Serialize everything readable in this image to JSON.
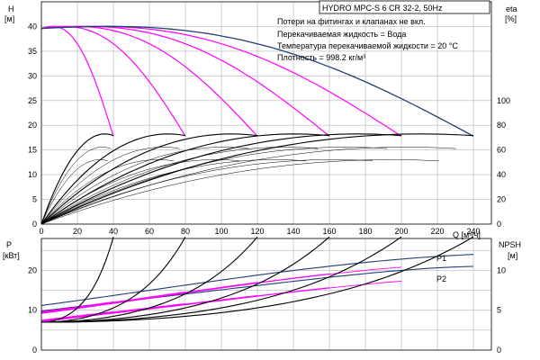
{
  "title": "HYDRO MPC-S 6 CR 32-2, 50Hz",
  "annotations": [
    "Потери на фитингах и клапанах не вкл.",
    "Перекачиваемая жидкость = Вода",
    "Температура перекачиваемой жидкости = 20 °C",
    "Плотность = 998.2 кг/м³"
  ],
  "colors": {
    "magenta": "#ff00ff",
    "navy": "#1f3f73",
    "black": "#000000",
    "grid": "#b4b4b4"
  },
  "chart_data": [
    {
      "type": "line",
      "panel": "head",
      "x_axis_label": "Q [м³/ч]",
      "x_ticks": [
        "0",
        "20",
        "40",
        "60",
        "80",
        "100",
        "120",
        "140",
        "160",
        "180",
        "200",
        "220",
        "240"
      ],
      "xlim": [
        0,
        250
      ],
      "y_left_label": [
        "H",
        "[м]"
      ],
      "y_left_ticks": [
        "0",
        "5",
        "10",
        "15",
        "20",
        "25",
        "30",
        "35",
        "40"
      ],
      "ylim": [
        0,
        45
      ],
      "y_right_label": [
        "eta",
        "[%]"
      ],
      "y_right_ticks": [
        "0",
        "20",
        "40",
        "60",
        "80",
        "100"
      ],
      "y_right_lim": [
        0,
        180
      ],
      "pump_max_flows": [
        40,
        80,
        120,
        160,
        200,
        240
      ],
      "head_curves": [
        {
          "pumps": 1,
          "x": [
            0,
            10,
            20,
            30,
            40
          ],
          "y": [
            39.6,
            39.8,
            36.5,
            28.8,
            17.8
          ]
        },
        {
          "pumps": 2,
          "x": [
            0,
            20,
            40,
            60,
            80
          ],
          "y": [
            39.6,
            39.8,
            36.5,
            28.8,
            17.8
          ]
        },
        {
          "pumps": 3,
          "x": [
            0,
            30,
            60,
            90,
            120
          ],
          "y": [
            39.6,
            39.8,
            36.5,
            28.8,
            17.8
          ]
        },
        {
          "pumps": 4,
          "x": [
            0,
            40,
            80,
            120,
            160
          ],
          "y": [
            39.6,
            39.8,
            36.5,
            28.8,
            17.8
          ]
        },
        {
          "pumps": 5,
          "x": [
            0,
            50,
            100,
            150,
            200
          ],
          "y": [
            39.6,
            39.8,
            36.5,
            28.8,
            17.8
          ]
        },
        {
          "pumps": 6,
          "x": [
            0,
            60,
            120,
            180,
            240
          ],
          "y": [
            39.6,
            39.8,
            36.5,
            28.8,
            17.8
          ]
        }
      ],
      "efficiency_peak_percent": 73
    },
    {
      "type": "line",
      "panel": "power",
      "y_left_label": [
        "P",
        "[кВт]"
      ],
      "y_left_ticks": [
        "0",
        "10",
        "20"
      ],
      "ylim": [
        0,
        28
      ],
      "y_right_label": [
        "NPSH",
        "[м]"
      ],
      "y_right_ticks": [
        "0",
        "5",
        "10"
      ],
      "y_right_lim": [
        0,
        14
      ],
      "series": [
        {
          "name": "P1",
          "x": [
            0,
            60,
            120,
            180,
            240
          ],
          "y": [
            11.2,
            15.0,
            18.8,
            22.0,
            24.0
          ]
        },
        {
          "name": "P2",
          "x": [
            0,
            60,
            120,
            180,
            240
          ],
          "y": [
            9.8,
            13.0,
            16.2,
            19.2,
            21.0
          ]
        }
      ],
      "npsh_x_fraction": [
        0,
        0.25,
        0.5,
        0.75,
        1.0
      ],
      "npsh_values": [
        3.5,
        3.9,
        5.3,
        8.3,
        14.2
      ]
    }
  ]
}
